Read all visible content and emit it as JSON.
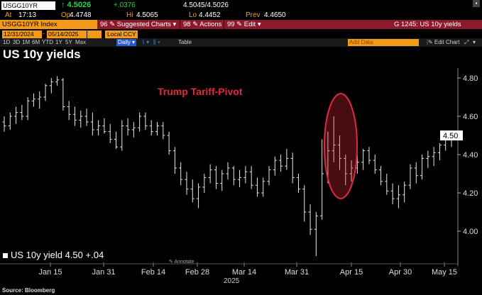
{
  "quote": {
    "ticker": "USGG10YR",
    "last": "↑ 4.5026",
    "change": "+.0376",
    "bid_ask": "4.5045/4.5026",
    "at_label": "At",
    "at_value": "17:13",
    "op_label": "Op",
    "op_value": "4.4748",
    "hi_label": "Hi",
    "hi_value": "4.5065",
    "lo_label": "Lo",
    "lo_value": "4.4452",
    "prev_label": "Prev",
    "prev_value": "4.4650"
  },
  "commandbar": {
    "security": "USGG10YR Index",
    "menu1": "96 ✎ Suggested Charts ▾",
    "menu2": "98 ✎ Actions ▾",
    "menu3": "99 ✎ Edit ▾",
    "right": "G 1245: US 10y yields"
  },
  "daterange": {
    "start": "12/31/2024",
    "end": "05/14/2025",
    "ccy": "Local CCY"
  },
  "periods": [
    "1D",
    "3D",
    "1M",
    "6M",
    "YTD",
    "1Y",
    "5Y",
    "Max"
  ],
  "toolbar": {
    "daily": "Daily ▾",
    "table": "Table",
    "add_data": "Add Data",
    "edit_chart": "✎ Edit Chart"
  },
  "chart_title": "US 10y yields",
  "annotation": "Trump Tariff-Pivot",
  "legend": "US 10y yield 4.50 +.04",
  "annotate_label": "Annotate",
  "source": "Source: Bloomberg",
  "colors": {
    "accent_orange": "#f29a1a",
    "menu_red": "#8a1a2c",
    "up_green": "#2fd24a",
    "annot_red": "#e22a3a"
  },
  "chart_data": {
    "type": "bar",
    "title": "US 10y yields",
    "xlabel": "2025",
    "ylabel": "",
    "ylim": [
      3.85,
      4.86
    ],
    "x_tick_labels": [
      "Jan 15",
      "Jan 31",
      "Feb 14",
      "Feb 28",
      "Mar 14",
      "Mar 31",
      "Apr 15",
      "Apr 30",
      "May 15"
    ],
    "y_tick_labels": [
      "4.80",
      "4.60",
      "4.40",
      "4.20",
      "4.00"
    ],
    "last_value_label": "4.50",
    "series": [
      {
        "name": "US 10y yield",
        "ohlc": [
          [
            4.57,
            4.6,
            4.52,
            4.55
          ],
          [
            4.55,
            4.62,
            4.53,
            4.6
          ],
          [
            4.6,
            4.65,
            4.56,
            4.62
          ],
          [
            4.62,
            4.66,
            4.58,
            4.6
          ],
          [
            4.6,
            4.7,
            4.58,
            4.68
          ],
          [
            4.68,
            4.72,
            4.65,
            4.69
          ],
          [
            4.69,
            4.73,
            4.64,
            4.7
          ],
          [
            4.7,
            4.77,
            4.68,
            4.76
          ],
          [
            4.76,
            4.8,
            4.72,
            4.78
          ],
          [
            4.78,
            4.81,
            4.76,
            4.79
          ],
          [
            4.79,
            4.8,
            4.63,
            4.65
          ],
          [
            4.65,
            4.68,
            4.58,
            4.61
          ],
          [
            4.61,
            4.65,
            4.55,
            4.58
          ],
          [
            4.58,
            4.63,
            4.54,
            4.6
          ],
          [
            4.6,
            4.64,
            4.55,
            4.57
          ],
          [
            4.57,
            4.62,
            4.5,
            4.53
          ],
          [
            4.53,
            4.58,
            4.5,
            4.55
          ],
          [
            4.55,
            4.59,
            4.51,
            4.52
          ],
          [
            4.52,
            4.56,
            4.46,
            4.48
          ],
          [
            4.48,
            4.52,
            4.43,
            4.44
          ],
          [
            4.44,
            4.58,
            4.42,
            4.55
          ],
          [
            4.55,
            4.59,
            4.5,
            4.53
          ],
          [
            4.53,
            4.57,
            4.49,
            4.54
          ],
          [
            4.54,
            4.62,
            4.52,
            4.6
          ],
          [
            4.6,
            4.62,
            4.53,
            4.55
          ],
          [
            4.55,
            4.58,
            4.5,
            4.52
          ],
          [
            4.52,
            4.57,
            4.5,
            4.55
          ],
          [
            4.55,
            4.57,
            4.48,
            4.5
          ],
          [
            4.5,
            4.52,
            4.4,
            4.42
          ],
          [
            4.42,
            4.44,
            4.3,
            4.33
          ],
          [
            4.33,
            4.36,
            4.24,
            4.27
          ],
          [
            4.27,
            4.31,
            4.19,
            4.22
          ],
          [
            4.22,
            4.27,
            4.15,
            4.17
          ],
          [
            4.17,
            4.25,
            4.12,
            4.23
          ],
          [
            4.23,
            4.3,
            4.2,
            4.28
          ],
          [
            4.28,
            4.35,
            4.25,
            4.32
          ],
          [
            4.32,
            4.34,
            4.22,
            4.25
          ],
          [
            4.25,
            4.32,
            4.21,
            4.3
          ],
          [
            4.3,
            4.36,
            4.27,
            4.33
          ],
          [
            4.33,
            4.34,
            4.24,
            4.27
          ],
          [
            4.27,
            4.32,
            4.23,
            4.28
          ],
          [
            4.28,
            4.34,
            4.25,
            4.31
          ],
          [
            4.31,
            4.34,
            4.22,
            4.24
          ],
          [
            4.24,
            4.28,
            4.18,
            4.2
          ],
          [
            4.2,
            4.28,
            4.18,
            4.26
          ],
          [
            4.26,
            4.34,
            4.24,
            4.32
          ],
          [
            4.32,
            4.39,
            4.29,
            4.37
          ],
          [
            4.37,
            4.4,
            4.31,
            4.34
          ],
          [
            4.34,
            4.43,
            4.32,
            4.38
          ],
          [
            4.38,
            4.41,
            4.25,
            4.28
          ],
          [
            4.28,
            4.3,
            4.2,
            4.22
          ],
          [
            4.22,
            4.24,
            4.05,
            4.1
          ],
          [
            4.1,
            4.14,
            3.98,
            4.01
          ],
          [
            4.01,
            4.1,
            3.87,
            4.08
          ],
          [
            4.08,
            4.48,
            4.06,
            4.3
          ],
          [
            4.3,
            4.52,
            4.25,
            4.42
          ],
          [
            4.42,
            4.6,
            4.36,
            4.45
          ],
          [
            4.45,
            4.5,
            4.32,
            4.38
          ],
          [
            4.38,
            4.4,
            4.24,
            4.3
          ],
          [
            4.3,
            4.37,
            4.26,
            4.33
          ],
          [
            4.33,
            4.4,
            4.3,
            4.36
          ],
          [
            4.36,
            4.43,
            4.32,
            4.42
          ],
          [
            4.42,
            4.44,
            4.35,
            4.37
          ],
          [
            4.37,
            4.4,
            4.3,
            4.32
          ],
          [
            4.32,
            4.34,
            4.24,
            4.26
          ],
          [
            4.26,
            4.3,
            4.19,
            4.21
          ],
          [
            4.21,
            4.25,
            4.14,
            4.17
          ],
          [
            4.17,
            4.24,
            4.12,
            4.19
          ],
          [
            4.19,
            4.26,
            4.15,
            4.24
          ],
          [
            4.24,
            4.35,
            4.22,
            4.33
          ],
          [
            4.33,
            4.36,
            4.25,
            4.29
          ],
          [
            4.29,
            4.4,
            4.27,
            4.38
          ],
          [
            4.38,
            4.42,
            4.33,
            4.39
          ],
          [
            4.39,
            4.44,
            4.34,
            4.41
          ],
          [
            4.41,
            4.46,
            4.37,
            4.45
          ],
          [
            4.45,
            4.5,
            4.42,
            4.48
          ],
          [
            4.48,
            4.51,
            4.44,
            4.5
          ]
        ]
      }
    ]
  }
}
